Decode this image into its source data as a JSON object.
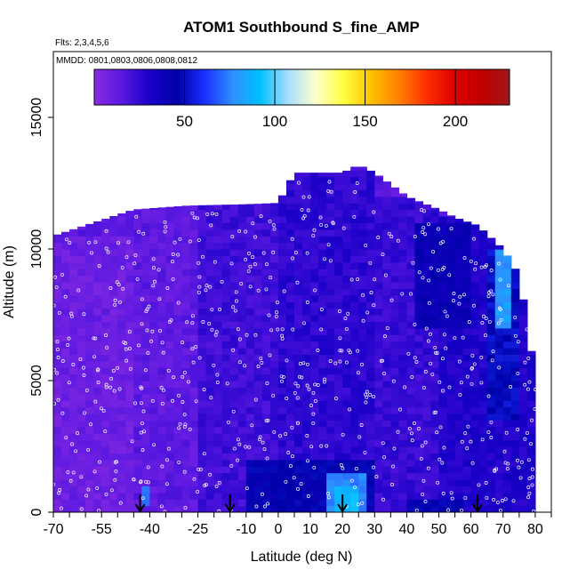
{
  "chart_data": {
    "type": "heatmap",
    "title": "ATOM1 Southbound S_fine_AMP",
    "subtitle_flights": "Flts: 2,3,4,5,6",
    "subtitle_dates": "MMDD: 0801,0803,0806,0808,0812",
    "xlabel": "Latitude (deg N)",
    "ylabel": "Altitude (m)",
    "xlim": [
      -70,
      85
    ],
    "ylim": [
      0,
      17500
    ],
    "x_ticks": [
      -70,
      -55,
      -40,
      -25,
      -10,
      0,
      10,
      20,
      30,
      40,
      50,
      60,
      70,
      80
    ],
    "x_ticks_minor": [
      -65,
      -60,
      -50,
      -45,
      -35,
      -30,
      -20,
      -15,
      -5,
      5,
      15,
      25,
      35,
      45,
      55,
      65,
      75,
      85
    ],
    "x_tick_labels": [
      "-70",
      "-55",
      "-40",
      "-25",
      "-10",
      "0",
      "10",
      "20",
      "30",
      "40",
      "50",
      "60",
      "70",
      "80"
    ],
    "y_ticks": [
      0,
      5000,
      10000,
      15000
    ],
    "y_tick_labels": [
      "0",
      "5000",
      "10000",
      "15000"
    ],
    "colorbar": {
      "vmin": 0,
      "vmax": 230,
      "ticks": [
        50,
        100,
        150,
        200
      ],
      "tick_labels": [
        "50",
        "100",
        "150",
        "200"
      ],
      "colors": [
        "#8a2be2",
        "#5a18e0",
        "#1a00c8",
        "#0000a8",
        "#1a30ff",
        "#2e8fff",
        "#00bfff",
        "#a8deff",
        "#ffffcc",
        "#ffff40",
        "#ffc000",
        "#ff8000",
        "#ff3000",
        "#e00000",
        "#c00000",
        "#a01818"
      ]
    },
    "profile_top": [
      [
        -70,
        10500
      ],
      [
        -60,
        10900
      ],
      [
        -45,
        11500
      ],
      [
        -28,
        11650
      ],
      [
        -10,
        11700
      ],
      [
        0,
        11750
      ],
      [
        5,
        12900
      ],
      [
        20,
        12900
      ],
      [
        25,
        13200
      ],
      [
        30,
        12900
      ],
      [
        40,
        12000
      ],
      [
        50,
        11500
      ],
      [
        55,
        11200
      ],
      [
        62,
        10900
      ],
      [
        70,
        10000
      ],
      [
        75,
        9000
      ],
      [
        78,
        6800
      ],
      [
        80,
        5000
      ],
      [
        80,
        0
      ]
    ],
    "color_fields": [
      {
        "lat": [
          -70,
          -45
        ],
        "alt": [
          0,
          10500
        ],
        "value": 10
      },
      {
        "lat": [
          -45,
          -25
        ],
        "alt": [
          0,
          11500
        ],
        "value": 14
      },
      {
        "lat": [
          -25,
          0
        ],
        "alt": [
          0,
          11700
        ],
        "value": 22
      },
      {
        "lat": [
          0,
          30
        ],
        "alt": [
          0,
          13000
        ],
        "value": 26
      },
      {
        "lat": [
          30,
          50
        ],
        "alt": [
          0,
          12000
        ],
        "value": 24
      },
      {
        "lat": [
          50,
          80
        ],
        "alt": [
          0,
          11200
        ],
        "value": 30
      },
      {
        "lat": [
          -10,
          30
        ],
        "alt": [
          0,
          2000
        ],
        "value": 45
      },
      {
        "lat": [
          15,
          27
        ],
        "alt": [
          0,
          1500
        ],
        "value": 75
      },
      {
        "lat": [
          17,
          25
        ],
        "alt": [
          0,
          900
        ],
        "value": 90
      },
      {
        "lat": [
          -43,
          -39
        ],
        "alt": [
          200,
          900
        ],
        "value": 70
      },
      {
        "lat": [
          65,
          75
        ],
        "alt": [
          3500,
          10000
        ],
        "value": 50
      },
      {
        "lat": [
          68,
          72
        ],
        "alt": [
          7000,
          10000
        ],
        "value": 80
      },
      {
        "lat": [
          42,
          60
        ],
        "alt": [
          7000,
          11000
        ],
        "value": 40
      },
      {
        "lat": [
          40,
          58
        ],
        "alt": [
          0,
          600
        ],
        "value": 45
      }
    ],
    "arrows_lat": [
      -43,
      -15,
      20,
      62
    ],
    "observations": {
      "count": 650,
      "seed": 1
    }
  }
}
